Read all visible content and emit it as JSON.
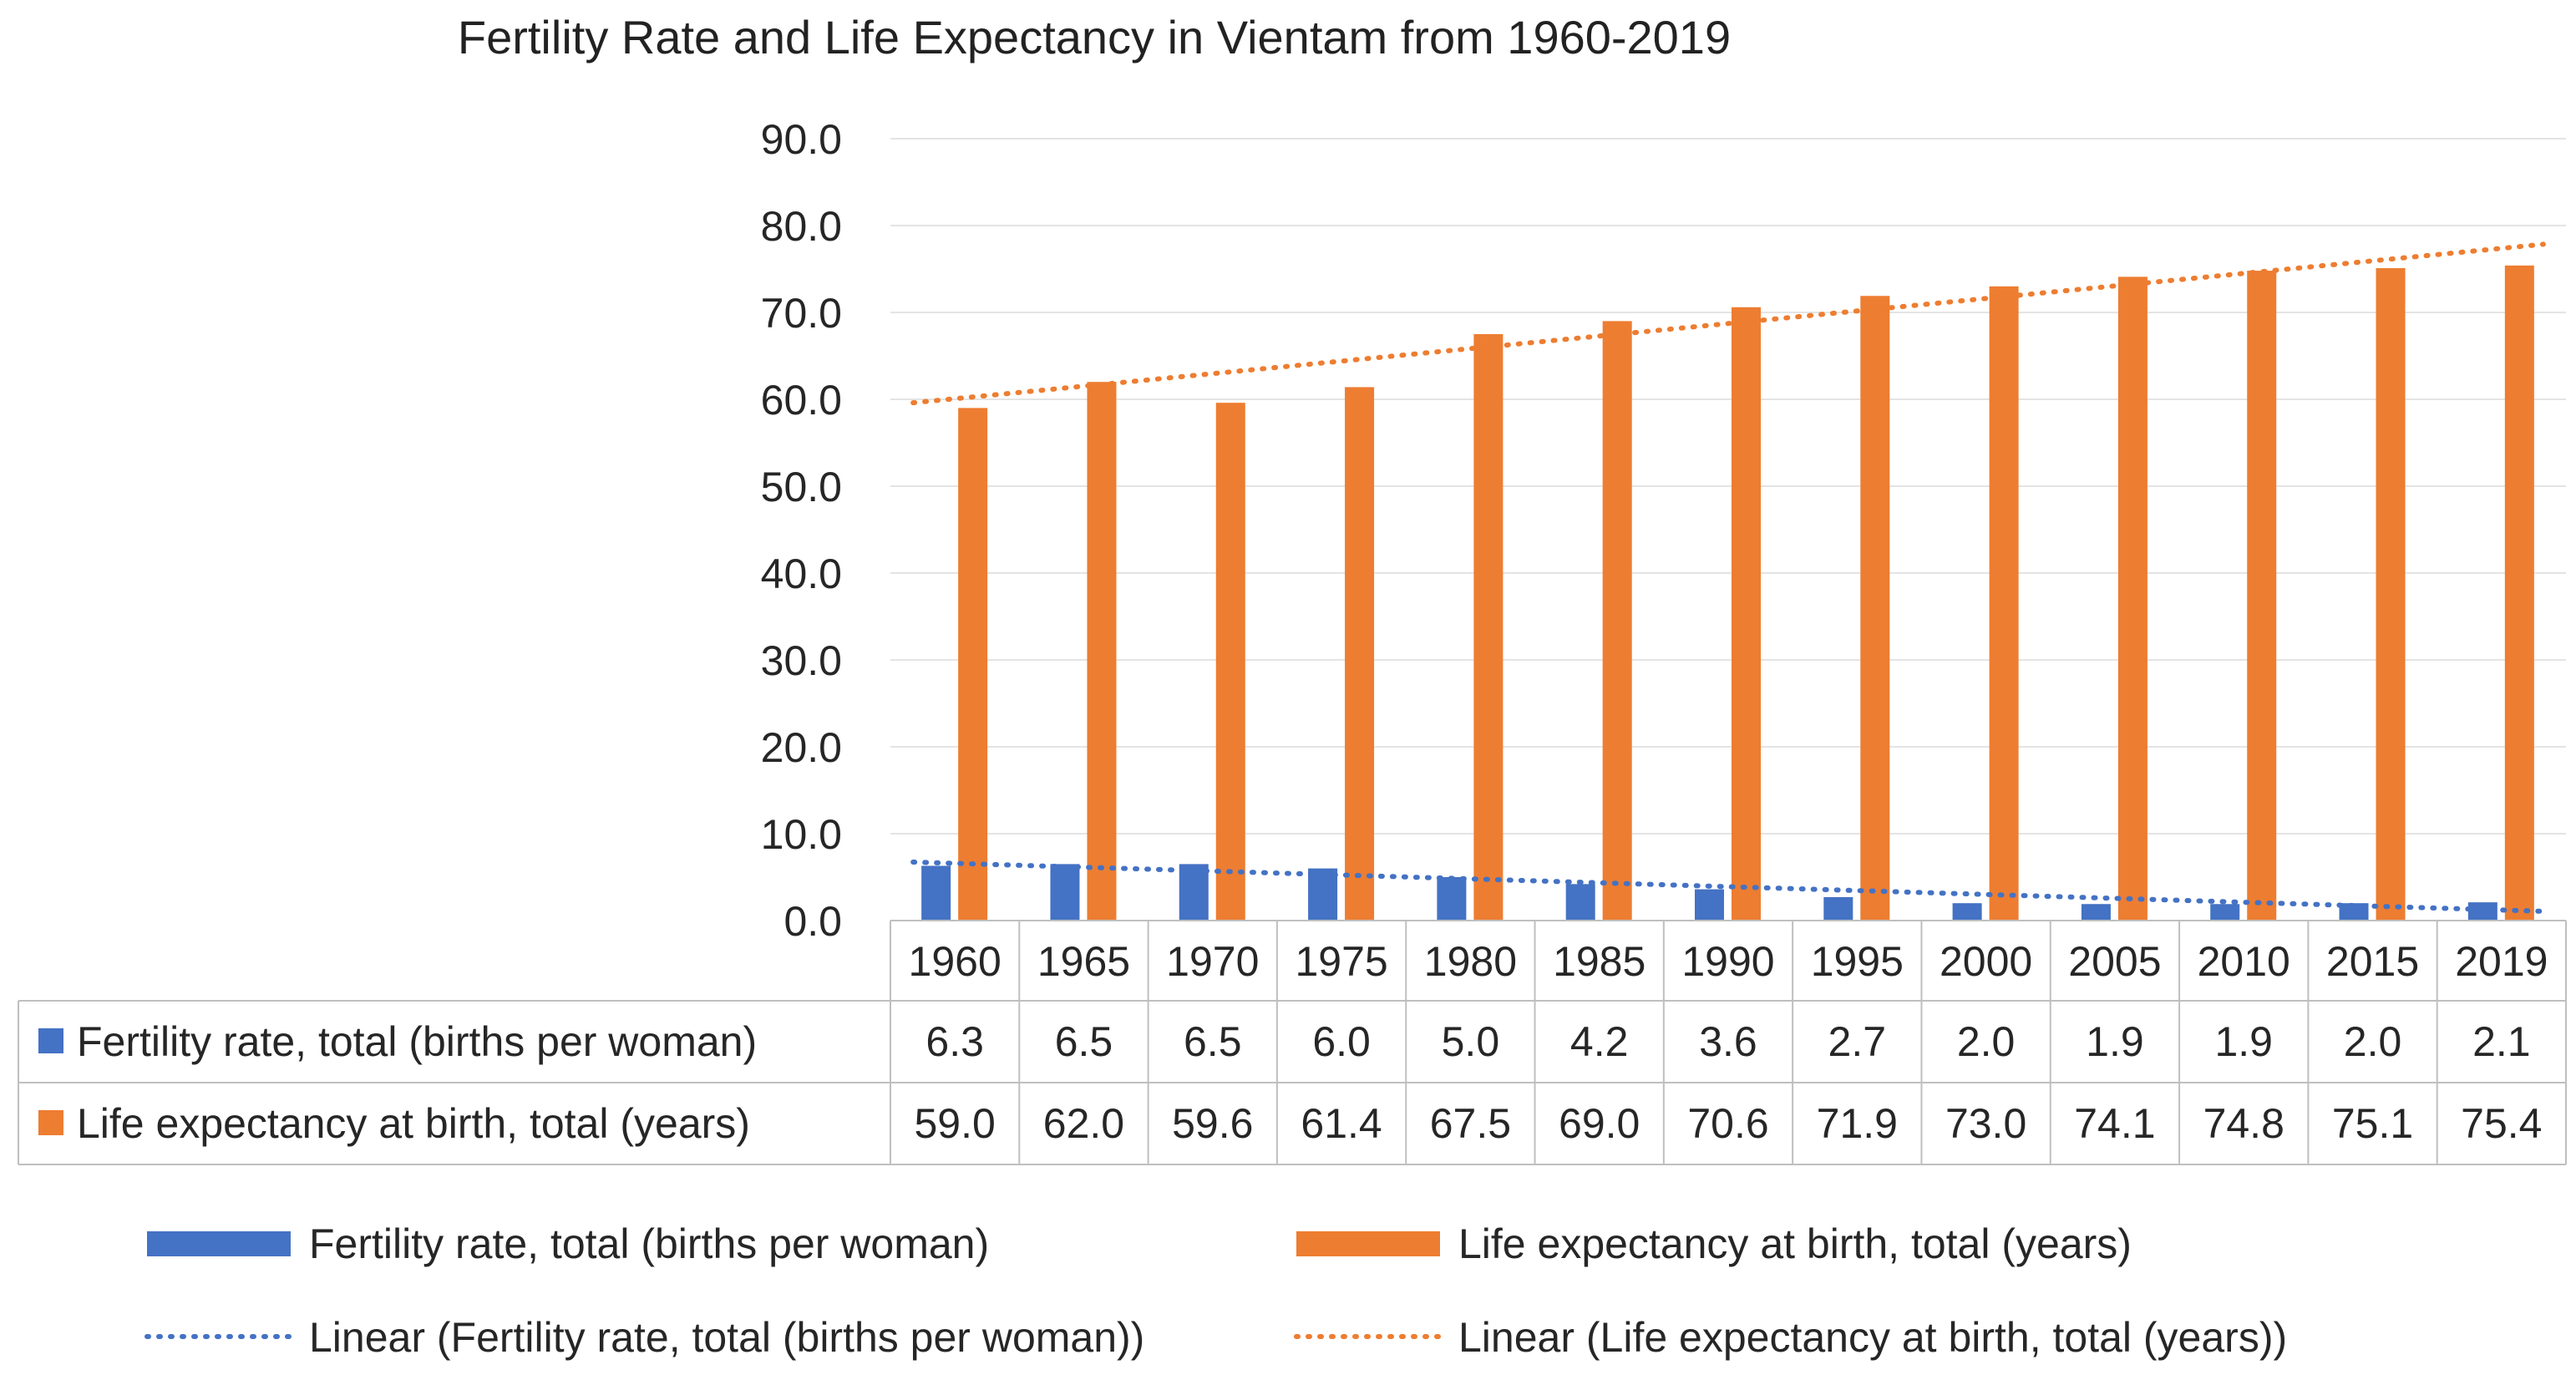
{
  "chart_data": {
    "type": "bar",
    "title": "Fertility Rate and Life Expectancy in Vientam from 1960-2019",
    "xlabel": "",
    "ylabel": "",
    "ylim": [
      0,
      90
    ],
    "yticks": [
      "0.0",
      "10.0",
      "20.0",
      "30.0",
      "40.0",
      "50.0",
      "60.0",
      "70.0",
      "80.0",
      "90.0"
    ],
    "grid": true,
    "categories": [
      "1960",
      "1965",
      "1970",
      "1975",
      "1980",
      "1985",
      "1990",
      "1995",
      "2000",
      "2005",
      "2010",
      "2015",
      "2019"
    ],
    "series": [
      {
        "name": "Fertility rate, total (births per woman)",
        "color": "#4472C4",
        "values": [
          6.3,
          6.5,
          6.5,
          6.0,
          5.0,
          4.2,
          3.6,
          2.7,
          2.0,
          1.9,
          1.9,
          2.0,
          2.1
        ],
        "labels": [
          "6.3",
          "6.5",
          "6.5",
          "6.0",
          "5.0",
          "4.2",
          "3.6",
          "2.7",
          "2.0",
          "1.9",
          "1.9",
          "2.0",
          "2.1"
        ]
      },
      {
        "name": "Life expectancy at birth, total (years)",
        "color": "#ED7D31",
        "values": [
          59.0,
          62.0,
          59.6,
          61.4,
          67.5,
          69.0,
          70.6,
          71.9,
          73.0,
          74.1,
          74.8,
          75.1,
          75.4
        ],
        "labels": [
          "59.0",
          "62.0",
          "59.6",
          "61.4",
          "67.5",
          "69.0",
          "70.6",
          "71.9",
          "73.0",
          "74.1",
          "74.8",
          "75.1",
          "75.4"
        ]
      }
    ],
    "trendlines": [
      {
        "name": "Linear (Fertility rate, total (births per woman))",
        "series_index": 0,
        "color": "#4472C4"
      },
      {
        "name": "Linear (Life expectancy at birth, total (years))",
        "series_index": 1,
        "color": "#ED7D31"
      }
    ],
    "legend_position": "bottom",
    "data_table": true
  }
}
